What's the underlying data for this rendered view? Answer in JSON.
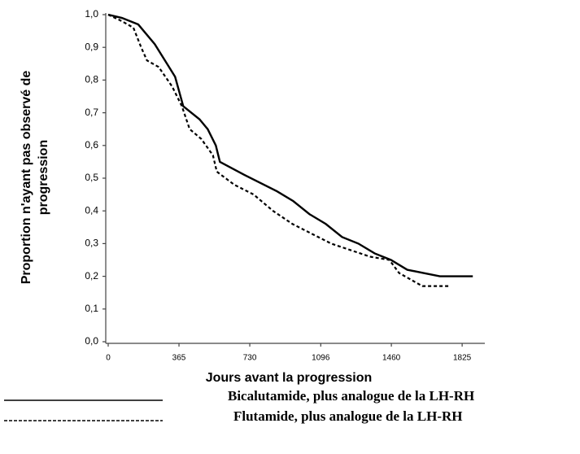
{
  "chart_data": {
    "type": "line",
    "x_label": "Jours avant la progression",
    "y_label": [
      "Proportion n'ayant pas observé de",
      "progression"
    ],
    "xlim": [
      0,
      1900
    ],
    "xticks": [
      0,
      365,
      730,
      1096,
      1460,
      1825
    ],
    "ylim": [
      0,
      1
    ],
    "yticks": [
      {
        "value": 0,
        "label": "0,0"
      },
      {
        "value": 0.1,
        "label": "0,1"
      },
      {
        "value": 0.2,
        "label": "0,2"
      },
      {
        "value": 0.3,
        "label": "0,3"
      },
      {
        "value": 0.4,
        "label": "0,4"
      },
      {
        "value": 0.5,
        "label": "0,5"
      },
      {
        "value": 0.6,
        "label": "0,6"
      },
      {
        "value": 0.7,
        "label": "0,7"
      },
      {
        "value": 0.8,
        "label": "0,8"
      },
      {
        "value": 0.9,
        "label": "0,9"
      },
      {
        "value": 1,
        "label": "1,0"
      }
    ],
    "series": [
      {
        "name": "Bicalutamide, plus analogue de la LH-RH",
        "color": "#000000",
        "line_style": "solid",
        "x": [
          0,
          71,
          155,
          240,
          303,
          345,
          387,
          471,
          513,
          555,
          576,
          702,
          870,
          954,
          1038,
          1122,
          1206,
          1290,
          1374,
          1458,
          1542,
          1626,
          1710,
          1880
        ],
        "values": [
          1.0,
          0.99,
          0.97,
          0.91,
          0.85,
          0.81,
          0.72,
          0.68,
          0.65,
          0.6,
          0.55,
          0.51,
          0.46,
          0.43,
          0.39,
          0.36,
          0.32,
          0.3,
          0.27,
          0.25,
          0.22,
          0.21,
          0.2,
          0.2
        ]
      },
      {
        "name": "Flutamide, plus analogue de la LH-RH",
        "color": "#000000",
        "line_style": "dashed",
        "x": [
          0,
          71,
          130,
          170,
          200,
          260,
          330,
          380,
          420,
          480,
          540,
          560,
          650,
          750,
          850,
          950,
          1050,
          1150,
          1250,
          1350,
          1450,
          1500,
          1560,
          1620,
          1760
        ],
        "values": [
          1.0,
          0.98,
          0.96,
          0.9,
          0.86,
          0.84,
          0.78,
          0.72,
          0.65,
          0.62,
          0.57,
          0.52,
          0.48,
          0.45,
          0.4,
          0.36,
          0.33,
          0.3,
          0.28,
          0.26,
          0.25,
          0.21,
          0.19,
          0.17,
          0.17
        ]
      }
    ]
  }
}
